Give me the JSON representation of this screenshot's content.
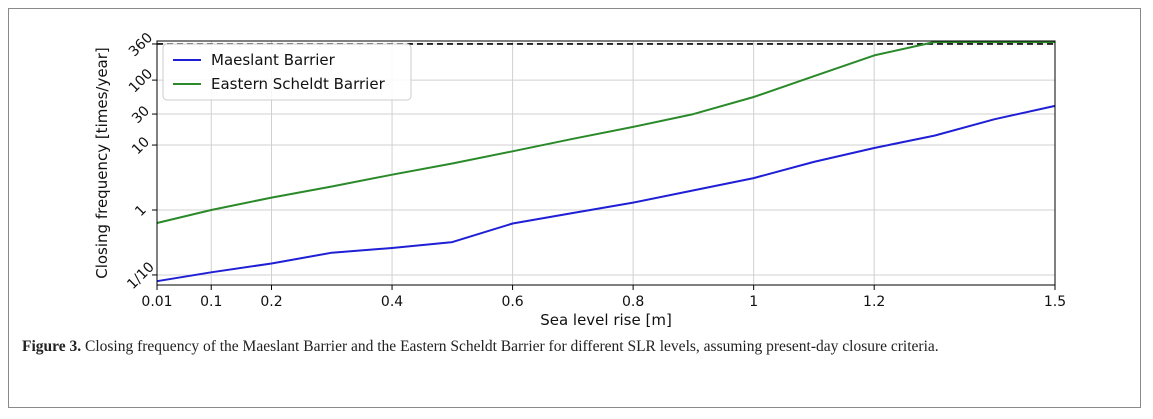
{
  "figure": {
    "label": "Figure 3.",
    "caption": " Closing frequency of the Maeslant Barrier and the Eastern Scheldt Barrier for different SLR levels, assuming present-day closure criteria."
  },
  "chart_data": {
    "type": "line",
    "title": "",
    "xlabel": "Sea level rise [m]",
    "ylabel": "Closing frequency [times/year]",
    "x_scale": "linear",
    "y_scale": "log",
    "xlim": [
      0.01,
      1.5
    ],
    "ylim": [
      0.07,
      400
    ],
    "grid": true,
    "legend_position": "top-left",
    "x_ticks": [
      {
        "value": 0.01,
        "label": "0.01"
      },
      {
        "value": 0.1,
        "label": "0.1"
      },
      {
        "value": 0.2,
        "label": "0.2"
      },
      {
        "value": 0.4,
        "label": "0.4"
      },
      {
        "value": 0.6,
        "label": "0.6"
      },
      {
        "value": 0.8,
        "label": "0.8"
      },
      {
        "value": 1.0,
        "label": "1"
      },
      {
        "value": 1.2,
        "label": "1.2"
      },
      {
        "value": 1.5,
        "label": "1.5"
      }
    ],
    "y_ticks": [
      {
        "value": 0.1,
        "label": "1/10"
      },
      {
        "value": 1,
        "label": "1"
      },
      {
        "value": 10,
        "label": "10"
      },
      {
        "value": 30,
        "label": "30"
      },
      {
        "value": 100,
        "label": "100"
      },
      {
        "value": 360,
        "label": "360"
      }
    ],
    "reference_line": {
      "y": 360,
      "style": "dashed",
      "color": "#000000"
    },
    "series": [
      {
        "name": "Maeslant Barrier",
        "color": "#1f1fd6",
        "x": [
          0.01,
          0.1,
          0.2,
          0.3,
          0.4,
          0.5,
          0.6,
          0.7,
          0.8,
          0.9,
          1.0,
          1.1,
          1.2,
          1.3,
          1.4,
          1.5
        ],
        "y": [
          0.08,
          0.11,
          0.15,
          0.22,
          0.26,
          0.32,
          0.62,
          0.9,
          1.3,
          2.0,
          3.1,
          5.5,
          9.0,
          14,
          25,
          40
        ]
      },
      {
        "name": "Eastern Scheldt Barrier",
        "color": "#2a8a2a",
        "x": [
          0.01,
          0.1,
          0.2,
          0.3,
          0.4,
          0.5,
          0.6,
          0.7,
          0.8,
          0.9,
          1.0,
          1.1,
          1.2,
          1.3,
          1.4,
          1.5
        ],
        "y": [
          0.63,
          1.0,
          1.55,
          2.3,
          3.5,
          5.2,
          8.0,
          12.5,
          19,
          30,
          55,
          115,
          240,
          440,
          470,
          470
        ]
      }
    ]
  }
}
